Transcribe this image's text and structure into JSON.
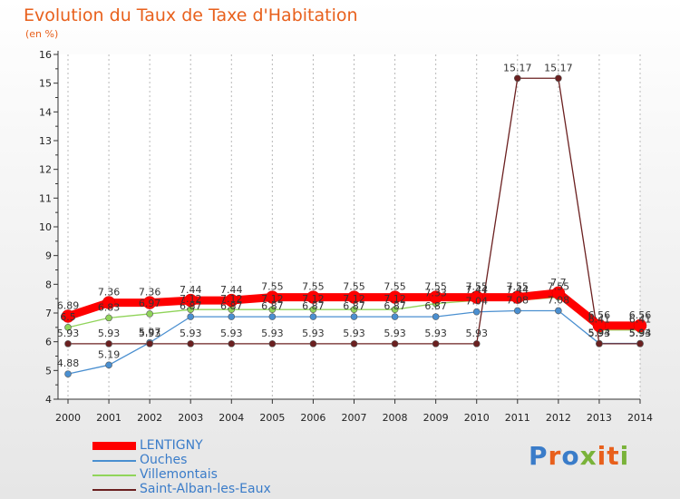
{
  "title": "Evolution du Taux de Taxe d'Habitation",
  "unit": "(en %)",
  "logo_text": "Proxiti",
  "chart_data": {
    "type": "line",
    "title": "Evolution du Taux de Taxe d'Habitation",
    "ylabel": "(en %)",
    "xlabel": "",
    "x": [
      "2000",
      "2001",
      "2002",
      "2003",
      "2004",
      "2005",
      "2006",
      "2007",
      "2008",
      "2009",
      "2010",
      "2011",
      "2012",
      "2013",
      "2014"
    ],
    "ylim": [
      4,
      16
    ],
    "yticks": [
      "4",
      "5",
      "6",
      "7",
      "8",
      "9",
      "10",
      "11",
      "12",
      "13",
      "14",
      "15",
      "16"
    ],
    "grid": "vertical dashed",
    "legend_position": "bottom-left",
    "series": [
      {
        "name": "LENTIGNY",
        "color": "#ff0000",
        "values": [
          6.89,
          7.36,
          7.36,
          7.44,
          7.44,
          7.55,
          7.55,
          7.55,
          7.55,
          7.55,
          7.55,
          7.55,
          7.7,
          6.56,
          6.56
        ],
        "labels": [
          "6.89",
          "7.36",
          "7.36",
          "7.44",
          "7.44",
          "7.55",
          "7.55",
          "7.55",
          "7.55",
          "7.55",
          "7.55",
          "7.55",
          "7.7",
          "6.56",
          "6.56"
        ]
      },
      {
        "name": "Ouches",
        "color": "#4a8fd0",
        "values": [
          4.88,
          5.19,
          5.97,
          6.87,
          6.87,
          6.87,
          6.87,
          6.87,
          6.87,
          6.87,
          7.04,
          7.08,
          7.08,
          5.94,
          5.94
        ],
        "labels": [
          "4.88",
          "5.19",
          "5.97",
          "6.87",
          "6.87",
          "6.87",
          "6.87",
          "6.87",
          "6.87",
          "6.87",
          "7.04",
          "7.08",
          "7.08",
          "5.94",
          "5.94"
        ]
      },
      {
        "name": "Villemontais",
        "color": "#90d45a",
        "values": [
          6.5,
          6.83,
          6.97,
          7.12,
          7.12,
          7.12,
          7.12,
          7.12,
          7.12,
          7.33,
          7.44,
          7.44,
          7.55,
          6.41,
          6.41
        ],
        "labels": [
          "6.5",
          "6.83",
          "6.97",
          "7.12",
          "7.12",
          "7.12",
          "7.12",
          "7.12",
          "7.12",
          "7.33",
          "7.44",
          "7.44",
          "7.55",
          "6.41",
          "6.41"
        ]
      },
      {
        "name": "Saint-Alban-les-Eaux",
        "color": "#6b2020",
        "values": [
          5.93,
          5.93,
          5.93,
          5.93,
          5.93,
          5.93,
          5.93,
          5.93,
          5.93,
          5.93,
          5.93,
          15.17,
          15.17,
          5.93,
          5.93
        ],
        "labels": [
          "5.93",
          "5.93",
          "5.93",
          "5.93",
          "5.93",
          "5.93",
          "5.93",
          "5.93",
          "5.93",
          "5.93",
          "5.93",
          "15.17",
          "15.17",
          "5.93",
          "5.93"
        ]
      }
    ]
  },
  "legend": [
    {
      "label": "LENTIGNY",
      "color": "#ff0000",
      "thick": true
    },
    {
      "label": "Ouches",
      "color": "#4a8fd0",
      "thick": false
    },
    {
      "label": "Villemontais",
      "color": "#90d45a",
      "thick": false
    },
    {
      "label": "Saint-Alban-les-Eaux",
      "color": "#6b2020",
      "thick": false
    }
  ],
  "logo_colors": [
    "#3a7cc9",
    "#e8601c",
    "#3a7cc9",
    "#7ab33a",
    "#e8601c",
    "#e8601c",
    "#7ab33a"
  ]
}
